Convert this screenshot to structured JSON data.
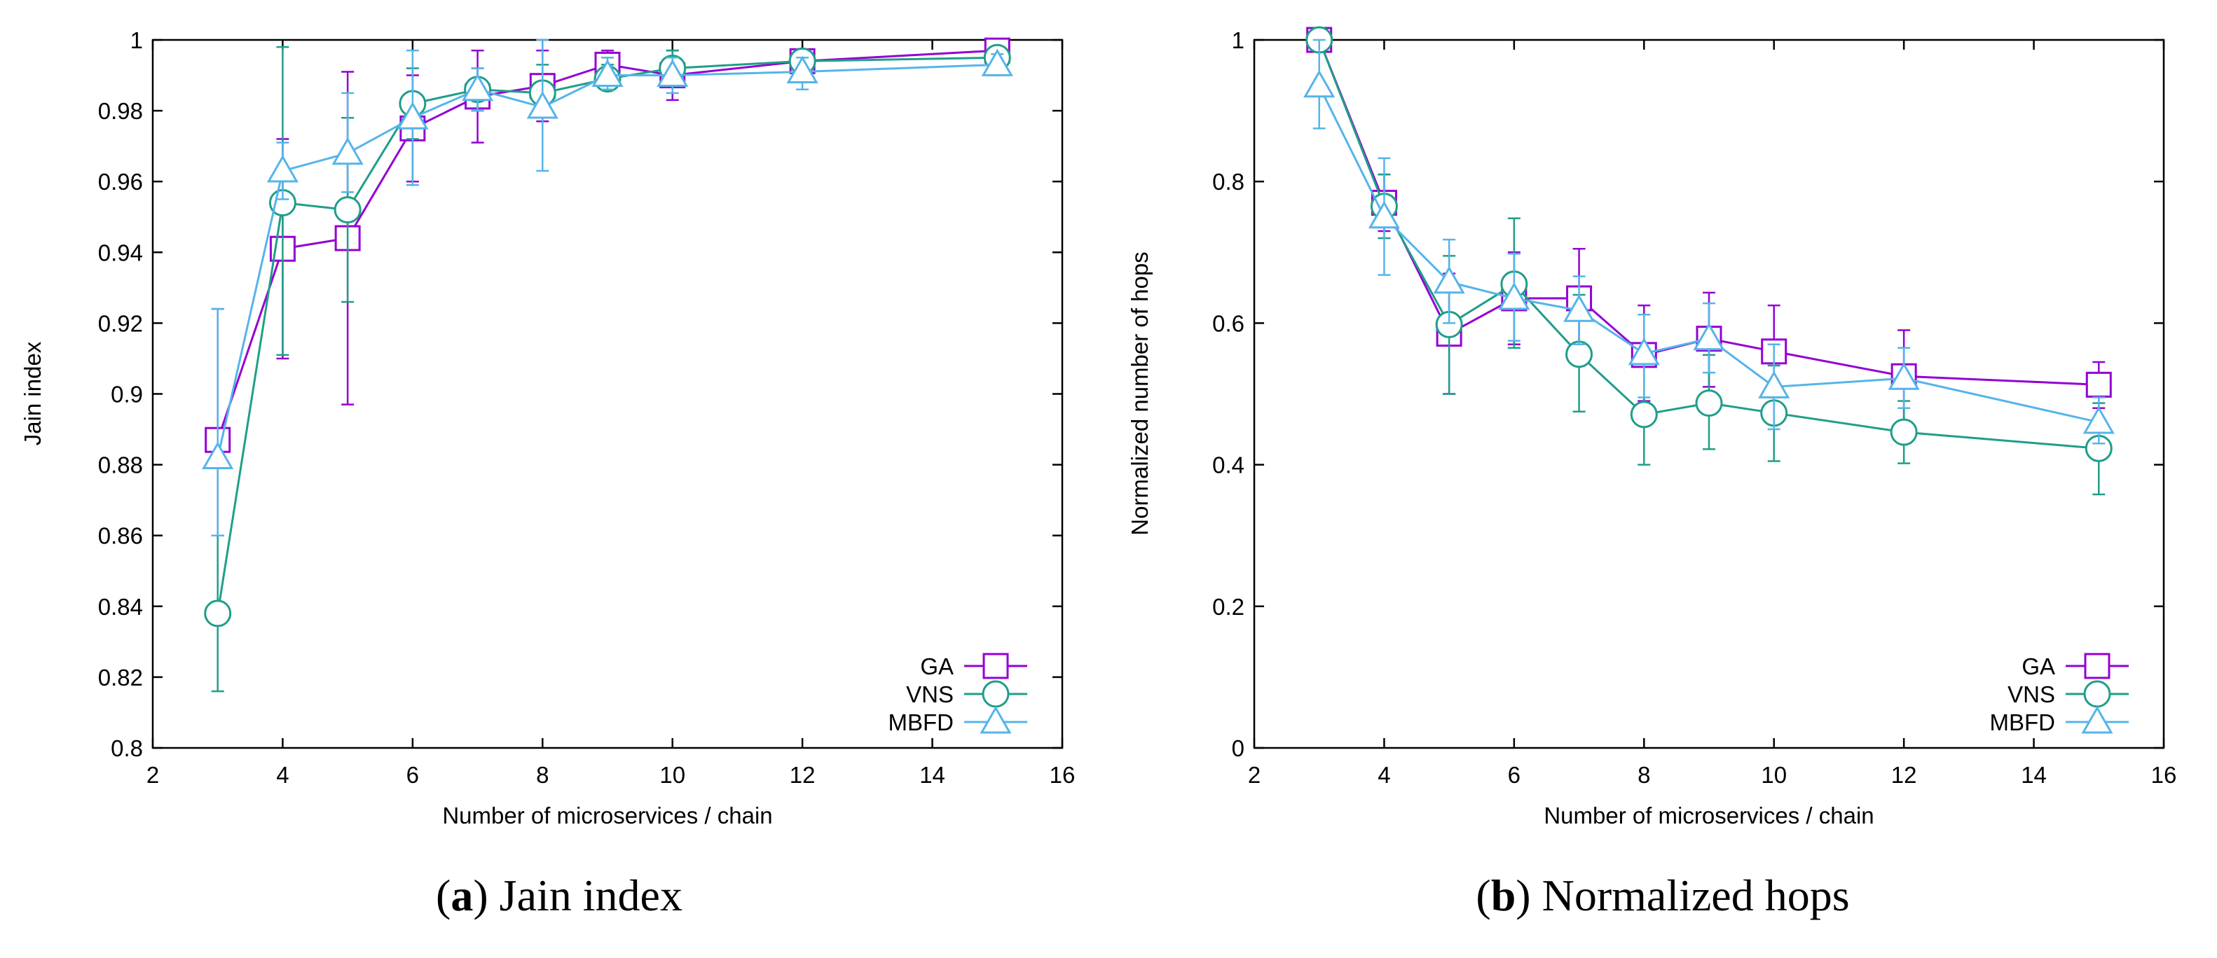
{
  "chart_data": [
    {
      "type": "line",
      "caption": {
        "letter": "a",
        "text": "Jain index",
        "open": "(",
        "close": ")"
      },
      "xlabel": "Number of microservices / chain",
      "ylabel": "Jain index",
      "xlim": [
        2,
        16
      ],
      "ylim": [
        0.8,
        1.0
      ],
      "xticks": [
        2,
        4,
        6,
        8,
        10,
        12,
        14,
        16
      ],
      "yticks": [
        0.8,
        0.82,
        0.84,
        0.86,
        0.88,
        0.9,
        0.92,
        0.94,
        0.96,
        0.98,
        1.0
      ],
      "ytick_labels": [
        "0.8",
        "0.82",
        "0.84",
        "0.86",
        "0.88",
        "0.9",
        "0.92",
        "0.94",
        "0.96",
        "0.98",
        "1"
      ],
      "legend_position": "bottom-right",
      "x": [
        3,
        4,
        5,
        6,
        7,
        8,
        9,
        10,
        12,
        15
      ],
      "series": [
        {
          "name": "GA",
          "color": "#9400d3",
          "marker": "square",
          "values": [
            0.887,
            0.941,
            0.944,
            0.975,
            0.984,
            0.987,
            0.993,
            0.99,
            0.994,
            0.997
          ],
          "err_low": [
            0.86,
            0.91,
            0.897,
            0.96,
            0.971,
            0.977,
            0.989,
            0.983,
            0.992,
            0.995
          ],
          "err_high": [
            0.924,
            0.972,
            0.991,
            0.99,
            0.997,
            0.997,
            0.997,
            0.997,
            0.997,
            0.999
          ]
        },
        {
          "name": "VNS",
          "color": "#1f9e89",
          "marker": "circle",
          "values": [
            0.838,
            0.954,
            0.952,
            0.982,
            0.986,
            0.985,
            0.989,
            0.992,
            0.994,
            0.995
          ],
          "err_low": [
            0.816,
            0.911,
            0.926,
            0.972,
            0.98,
            0.978,
            0.986,
            0.987,
            0.991,
            0.993
          ],
          "err_high": [
            0.86,
            0.998,
            0.978,
            0.992,
            0.992,
            0.993,
            0.993,
            0.997,
            0.997,
            0.997
          ]
        },
        {
          "name": "MBFD",
          "color": "#56b4e9",
          "marker": "triangle",
          "values": [
            0.882,
            0.963,
            0.968,
            0.978,
            0.986,
            0.981,
            0.99,
            0.99,
            0.991,
            0.993
          ],
          "err_low": [
            0.86,
            0.955,
            0.957,
            0.959,
            0.98,
            0.963,
            0.986,
            0.985,
            0.986,
            0.99
          ],
          "err_high": [
            0.924,
            0.971,
            0.985,
            0.997,
            0.992,
            1.0,
            0.995,
            0.995,
            0.995,
            0.996
          ]
        }
      ]
    },
    {
      "type": "line",
      "caption": {
        "letter": "b",
        "text": "Normalized hops",
        "open": "(",
        "close": ")"
      },
      "xlabel": "Number of microservices / chain",
      "ylabel": "Normalized number of hops",
      "xlim": [
        2,
        16
      ],
      "ylim": [
        0,
        1.0
      ],
      "xticks": [
        2,
        4,
        6,
        8,
        10,
        12,
        14,
        16
      ],
      "yticks": [
        0,
        0.2,
        0.4,
        0.6,
        0.8,
        1.0
      ],
      "ytick_labels": [
        "0",
        "0.2",
        "0.4",
        "0.6",
        "0.8",
        "1"
      ],
      "legend_position": "bottom-right",
      "x": [
        3,
        4,
        5,
        6,
        7,
        8,
        9,
        10,
        12,
        15
      ],
      "series": [
        {
          "name": "GA",
          "color": "#9400d3",
          "marker": "square",
          "values": [
            1.0,
            0.77,
            0.585,
            0.635,
            0.635,
            0.555,
            0.578,
            0.56,
            0.525,
            0.513
          ],
          "err_low": [
            1.0,
            0.73,
            0.5,
            0.57,
            0.56,
            0.49,
            0.51,
            0.495,
            0.46,
            0.48
          ],
          "err_high": [
            1.0,
            0.81,
            0.67,
            0.7,
            0.705,
            0.625,
            0.643,
            0.625,
            0.59,
            0.545
          ]
        },
        {
          "name": "VNS",
          "color": "#1f9e89",
          "marker": "circle",
          "values": [
            1.0,
            0.765,
            0.598,
            0.655,
            0.556,
            0.471,
            0.487,
            0.473,
            0.446,
            0.423
          ],
          "err_low": [
            1.0,
            0.72,
            0.5,
            0.565,
            0.475,
            0.4,
            0.422,
            0.405,
            0.402,
            0.358
          ],
          "err_high": [
            1.0,
            0.81,
            0.695,
            0.748,
            0.64,
            0.545,
            0.555,
            0.54,
            0.49,
            0.487
          ]
        },
        {
          "name": "MBFD",
          "color": "#56b4e9",
          "marker": "triangle",
          "values": [
            0.935,
            0.75,
            0.658,
            0.635,
            0.618,
            0.557,
            0.578,
            0.51,
            0.522,
            0.46
          ],
          "err_low": [
            0.875,
            0.668,
            0.6,
            0.575,
            0.57,
            0.495,
            0.53,
            0.45,
            0.48,
            0.43
          ],
          "err_high": [
            1.0,
            0.833,
            0.718,
            0.698,
            0.666,
            0.612,
            0.628,
            0.57,
            0.565,
            0.495
          ]
        }
      ]
    }
  ]
}
